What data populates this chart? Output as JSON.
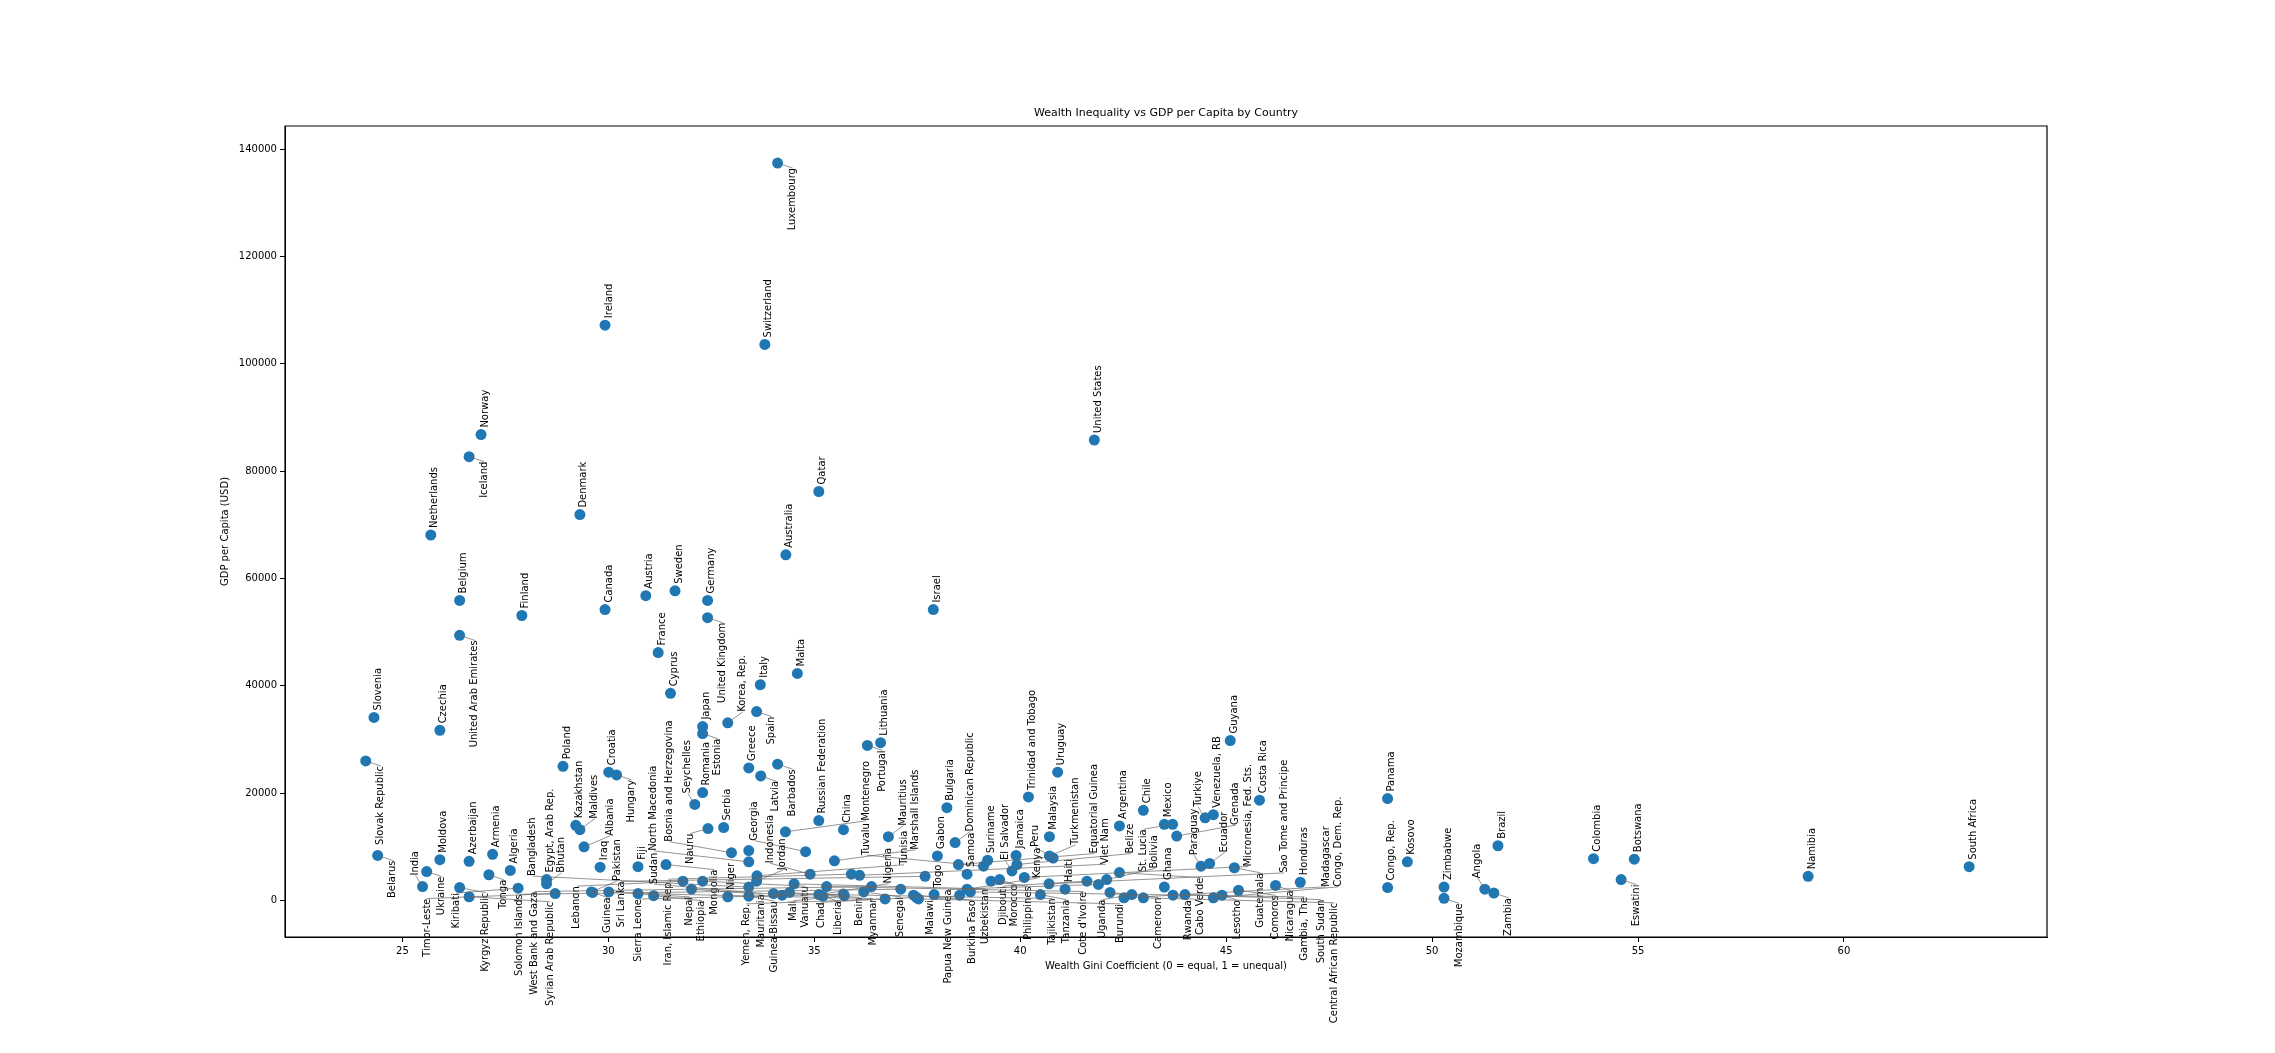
{
  "chart_data": {
    "type": "scatter",
    "title": "Wealth Inequality vs GDP per Capita by Country",
    "xlabel": "Wealth Gini Coefficient (0 = equal, 1 = unequal)",
    "ylabel": "GDP per Capita (USD)",
    "color": "#1f77b4",
    "marker": "circle",
    "grid": false,
    "legend": false,
    "xlim": [
      22.15,
      64.93
    ],
    "ylim": [
      -6800,
      144300
    ],
    "xticks": [
      25,
      30,
      35,
      40,
      45,
      50,
      55,
      60
    ],
    "yticks": [
      0,
      20000,
      40000,
      60000,
      80000,
      100000,
      120000,
      140000
    ],
    "x": [
      24.11,
      24.31,
      24.4,
      25.49,
      25.59,
      25.91,
      25.69,
      25.91,
      26.39,
      26.39,
      26.39,
      26.62,
      26.62,
      26.62,
      26.91,
      27.1,
      27.19,
      27.62,
      27.81,
      27.9,
      28.5,
      28.5,
      28.71,
      28.9,
      29.21,
      29.31,
      29.41,
      29.31,
      29.92,
      29.92,
      29.59,
      29.62,
      29.8,
      30.01,
      30.01,
      30.2,
      30.72,
      30.72,
      31.1,
      31.4,
      30.91,
      31.62,
      31.21,
      31.51,
      31.81,
      32.02,
      32.29,
      32.1,
      32.29,
      32.42,
      32.29,
      32.29,
      32.41,
      32.41,
      32.9,
      33.6,
      33.41,
      33.7,
      34.11,
      36.29,
      36.61,
      32.8,
      32.99,
      32.9,
      33.41,
      33.41,
      33.61,
      33.6,
      33.41,
      33.41,
      34.01,
      34.22,
      34.4,
      34.51,
      34.3,
      34.79,
      34.9,
      35.11,
      35.11,
      35.21,
      35.3,
      35.49,
      35.71,
      35.71,
      35.73,
      35.9,
      36.1,
      36.2,
      36.39,
      36.72,
      36.8,
      37.1,
      37.41,
      37.48,
      37.53,
      37.69,
      37.91,
      37.99,
      38.22,
      38.42,
      38.5,
      38.53,
      38.71,
      38.71,
      38.79,
      39.11,
      39.21,
      39.29,
      39.5,
      39.8,
      39.9,
      39.92,
      40.1,
      40.2,
      40.49,
      40.7,
      40.71,
      40.71,
      40.8,
      41.09,
      40.91,
      41.62,
      41.9,
      42.1,
      42.18,
      42.41,
      42.41,
      42.52,
      42.71,
      42.99,
      42.99,
      43.5,
      43.7,
      43.8,
      43.5,
      43.71,
      44.0,
      44.49,
      44.69,
      44.39,
      44.6,
      44.69,
      44.9,
      45.2,
      45.3,
      45.1,
      45.81,
      46.2,
      46.8,
      48.92,
      48.92,
      49.4,
      50.29,
      50.29,
      51.28,
      51.5,
      51.6,
      53.92,
      54.59,
      54.91,
      59.13,
      63.04,
      34.11,
      33.8,
      41.8,
      35.11,
      34.31,
      37.89,
      34.59,
      33.69
    ],
    "values": [
      26000,
      34100,
      8400,
      2600,
      5400,
      7600,
      68100,
      31700,
      55900,
      49400,
      2400,
      7300,
      700,
      82700,
      86800,
      4800,
      8600,
      5600,
      2300,
      53100,
      3900,
      3100,
      1300,
      25000,
      14000,
      13200,
      10000,
      71900,
      107200,
      54200,
      1600,
      1500,
      6200,
      1600,
      23900,
      23400,
      1300,
      6300,
      900,
      6700,
      56800,
      57700,
      46200,
      38600,
      3600,
      2100,
      3600,
      17900,
      20100,
      13400,
      31100,
      32400,
      55900,
      52700,
      33100,
      35200,
      24700,
      23200,
      25400,
      28900,
      29400,
      13600,
      8900,
      700,
      9300,
      7200,
      4600,
      3600,
      2500,
      800,
      1300,
      1000,
      1500,
      3100,
      12800,
      9100,
      4900,
      14900,
      1100,
      800,
      2600,
      7400,
      13200,
      1200,
      900,
      4900,
      4700,
      1600,
      2600,
      300,
      11900,
      2100,
      1000,
      600,
      300,
      4500,
      1100,
      8300,
      17300,
      10800,
      6700,
      1000,
      4900,
      2100,
      1600,
      6400,
      7500,
      3600,
      3900,
      5500,
      8400,
      6700,
      4300,
      19300,
      1100,
      3100,
      11900,
      8300,
      7900,
      2100,
      23900,
      3600,
      3000,
      3900,
      1500,
      5200,
      13900,
      500,
      1100,
      500,
      16800,
      14200,
      14200,
      12000,
      2500,
      1000,
      1100,
      15400,
      16000,
      6400,
      6900,
      500,
      1000,
      6100,
      1900,
      29800,
      18700,
      2800,
      3400,
      19000,
      2400,
      7200,
      2500,
      400,
      2100,
      1400,
      10200,
      7800,
      3900,
      7700,
      4500,
      6300,
      137400,
      103600,
      85800,
      76200,
      64400,
      54200,
      42300,
      40200
    ],
    "annotations": [
      {
        "text": "Slovak Republic",
        "x": 24.11,
        "y": 26000
      },
      {
        "text": "Slovenia",
        "x": 24.31,
        "y": 34100
      },
      {
        "text": "Belarus",
        "x": 24.4,
        "y": 8400
      },
      {
        "text": "India",
        "x": 25.49,
        "y": 2600
      },
      {
        "text": "Ukraine",
        "x": 25.59,
        "y": 5400
      },
      {
        "text": "Moldova",
        "x": 25.91,
        "y": 7600
      },
      {
        "text": "Netherlands",
        "x": 25.69,
        "y": 68100
      },
      {
        "text": "Czechia",
        "x": 25.91,
        "y": 31700
      },
      {
        "text": "Belgium",
        "x": 26.39,
        "y": 55900
      },
      {
        "text": "United Arab Emirates",
        "x": 26.39,
        "y": 49400
      },
      {
        "text": "Kyrgyz Republic",
        "x": 26.39,
        "y": 2400
      },
      {
        "text": "Azerbaijan",
        "x": 26.62,
        "y": 7300
      },
      {
        "text": "Syrian Arab Republic",
        "x": 26.62,
        "y": 700
      },
      {
        "text": "Iceland",
        "x": 26.62,
        "y": 82700
      },
      {
        "text": "Norway",
        "x": 26.91,
        "y": 86800
      },
      {
        "text": "Tonga",
        "x": 27.1,
        "y": 4800
      },
      {
        "text": "Armenia",
        "x": 27.19,
        "y": 8600
      },
      {
        "text": "Algeria",
        "x": 27.62,
        "y": 5600
      },
      {
        "text": "Kiribati",
        "x": 27.81,
        "y": 2300
      },
      {
        "text": "Finland",
        "x": 27.9,
        "y": 53100
      },
      {
        "text": "Egypt, Arab Rep.",
        "x": 28.5,
        "y": 3900
      },
      {
        "text": "Bhutan",
        "x": 28.5,
        "y": 3100
      },
      {
        "text": "Timor-Leste",
        "x": 28.71,
        "y": 1300
      },
      {
        "text": "Poland",
        "x": 28.9,
        "y": 25000
      },
      {
        "text": "Kazakhstan",
        "x": 29.21,
        "y": 14000
      },
      {
        "text": "Maldives",
        "x": 29.31,
        "y": 13200
      },
      {
        "text": "Albania",
        "x": 29.41,
        "y": 10000
      },
      {
        "text": "Denmark",
        "x": 29.31,
        "y": 71900
      },
      {
        "text": "Ireland",
        "x": 29.92,
        "y": 107200
      },
      {
        "text": "Canada",
        "x": 29.92,
        "y": 54200
      },
      {
        "text": "Pakistan",
        "x": 29.59,
        "y": 1600
      },
      {
        "text": "Guinea",
        "x": 29.62,
        "y": 1500
      },
      {
        "text": "Iraq",
        "x": 29.8,
        "y": 6200
      },
      {
        "text": "Nepal",
        "x": 30.01,
        "y": 1600
      },
      {
        "text": "Croatia",
        "x": 30.01,
        "y": 23900
      },
      {
        "text": "Hungary",
        "x": 30.2,
        "y": 23400
      },
      {
        "text": "Myanmar",
        "x": 30.72,
        "y": 1300
      },
      {
        "text": "Fiji",
        "x": 30.72,
        "y": 6300
      },
      {
        "text": "Ethiopia",
        "x": 31.1,
        "y": 900
      },
      {
        "text": "Mongolia",
        "x": 31.4,
        "y": 6700
      },
      {
        "text": "Austria",
        "x": 30.91,
        "y": 56800
      },
      {
        "text": "Sweden",
        "x": 31.62,
        "y": 57700
      },
      {
        "text": "France",
        "x": 31.21,
        "y": 46200
      },
      {
        "text": "Cyprus",
        "x": 31.51,
        "y": 38600
      },
      {
        "text": "Lebanon",
        "x": 31.81,
        "y": 3600
      },
      {
        "text": "Mauritania",
        "x": 32.02,
        "y": 2100
      },
      {
        "text": "Vanuatu",
        "x": 32.29,
        "y": 3600
      },
      {
        "text": "Seychelles",
        "x": 32.1,
        "y": 17900
      },
      {
        "text": "Romania",
        "x": 32.29,
        "y": 20100
      },
      {
        "text": "Nauru",
        "x": 32.42,
        "y": 13400
      },
      {
        "text": "Estonia",
        "x": 32.29,
        "y": 31100
      },
      {
        "text": "Japan",
        "x": 32.29,
        "y": 32400
      },
      {
        "text": "Germany",
        "x": 32.41,
        "y": 55900
      },
      {
        "text": "United Kingdom",
        "x": 32.41,
        "y": 52700
      },
      {
        "text": "Korea, Rep.",
        "x": 32.9,
        "y": 33100
      },
      {
        "text": "Spain",
        "x": 33.6,
        "y": 35200
      },
      {
        "text": "Greece",
        "x": 33.41,
        "y": 24700
      },
      {
        "text": "Latvia",
        "x": 33.7,
        "y": 23200
      },
      {
        "text": "Barbados",
        "x": 34.11,
        "y": 25400
      },
      {
        "text": "Portugal",
        "x": 36.29,
        "y": 28900
      },
      {
        "text": "Lithuania",
        "x": 36.61,
        "y": 29400
      },
      {
        "text": "Serbia",
        "x": 32.8,
        "y": 13600
      },
      {
        "text": "Bosnia and Herzegovina",
        "x": 32.99,
        "y": 8900
      },
      {
        "text": "Niger",
        "x": 32.9,
        "y": 700
      },
      {
        "text": "North Macedonia",
        "x": 33.41,
        "y": 7200
      },
      {
        "text": "Tunisia",
        "x": 33.61,
        "y": 4600
      },
      {
        "text": "Jordan",
        "x": 33.6,
        "y": 3600
      },
      {
        "text": "Bangladesh",
        "x": 33.41,
        "y": 2500
      },
      {
        "text": "Guinea-Bissau",
        "x": 33.41,
        "y": 800
      },
      {
        "text": "Tajikistan",
        "x": 34.01,
        "y": 1300
      },
      {
        "text": "Sudan",
        "x": 34.22,
        "y": 1000
      },
      {
        "text": "Benin",
        "x": 34.4,
        "y": 1500
      },
      {
        "text": "Uzbekistan",
        "x": 34.51,
        "y": 3100
      },
      {
        "text": "Montenegro",
        "x": 34.3,
        "y": 12800
      },
      {
        "text": "Georgia",
        "x": 34.79,
        "y": 9100
      },
      {
        "text": "Indonesia",
        "x": 34.9,
        "y": 4900
      },
      {
        "text": "Russian Federation",
        "x": 35.11,
        "y": 14900
      },
      {
        "text": "Nigeria",
        "x": 35.11,
        "y": 1100
      },
      {
        "text": "Liberia",
        "x": 35.21,
        "y": 800
      },
      {
        "text": "Cote d'Ivoire",
        "x": 35.3,
        "y": 2600
      },
      {
        "text": "Marshall Islands",
        "x": 35.49,
        "y": 7400
      },
      {
        "text": "China",
        "x": 35.71,
        "y": 13200
      },
      {
        "text": "Sierra Leone",
        "x": 35.71,
        "y": 1200
      },
      {
        "text": "Mali",
        "x": 35.73,
        "y": 900
      },
      {
        "text": "Iran, Islamic Rep.",
        "x": 35.9,
        "y": 4900
      },
      {
        "text": "Viet Nam",
        "x": 36.1,
        "y": 4700
      },
      {
        "text": "Senegal",
        "x": 36.2,
        "y": 1600
      },
      {
        "text": "West Bank and Gaza",
        "x": 36.39,
        "y": 2600
      },
      {
        "text": "Yemen, Rep.",
        "x": 36.72,
        "y": 300
      },
      {
        "text": "Mauritius",
        "x": 36.8,
        "y": 11900
      },
      {
        "text": "Solomon Islands",
        "x": 37.1,
        "y": 2100
      },
      {
        "text": "Burkina Faso",
        "x": 37.41,
        "y": 1000
      },
      {
        "text": "Chad",
        "x": 37.48,
        "y": 600
      },
      {
        "text": "Burundi",
        "x": 37.53,
        "y": 300
      },
      {
        "text": "Sri Lanka",
        "x": 37.69,
        "y": 4500
      },
      {
        "text": "Togo",
        "x": 37.91,
        "y": 1100
      },
      {
        "text": "Gabon",
        "x": 37.99,
        "y": 8300
      },
      {
        "text": "Bulgaria",
        "x": 38.22,
        "y": 17300
      },
      {
        "text": "Dominican Republic",
        "x": 38.42,
        "y": 10800
      },
      {
        "text": "Equatorial Guinea",
        "x": 38.5,
        "y": 6700
      },
      {
        "text": "Malawi",
        "x": 38.53,
        "y": 1000
      },
      {
        "text": "Samoa",
        "x": 38.71,
        "y": 4900
      },
      {
        "text": "Kenya",
        "x": 38.71,
        "y": 2100
      },
      {
        "text": "Gambia, The",
        "x": 38.79,
        "y": 1600
      },
      {
        "text": "Tuvalu",
        "x": 39.11,
        "y": 6400
      },
      {
        "text": "Suriname",
        "x": 39.21,
        "y": 7500
      },
      {
        "text": "Philippines",
        "x": 39.29,
        "y": 3600
      },
      {
        "text": "Morocco",
        "x": 39.5,
        "y": 3900
      },
      {
        "text": "El Salvador",
        "x": 39.8,
        "y": 5500
      },
      {
        "text": "Jamaica",
        "x": 39.9,
        "y": 8400
      },
      {
        "text": "Belize",
        "x": 39.92,
        "y": 6700
      },
      {
        "text": "Micronesia, Fed. Sts.",
        "x": 40.1,
        "y": 4300
      },
      {
        "text": "Trinidad and Tobago",
        "x": 40.2,
        "y": 19300
      },
      {
        "text": "Tanzania",
        "x": 40.49,
        "y": 1100
      },
      {
        "text": "Sao Tome and Principe",
        "x": 40.7,
        "y": 3100
      },
      {
        "text": "Malaysia",
        "x": 40.71,
        "y": 11900
      },
      {
        "text": "Turkmenistan",
        "x": 40.71,
        "y": 8300
      },
      {
        "text": "Peru",
        "x": 40.8,
        "y": 7900
      },
      {
        "text": "Haiti",
        "x": 41.09,
        "y": 2100
      },
      {
        "text": "Uruguay",
        "x": 40.91,
        "y": 23900
      },
      {
        "text": "Djibouti",
        "x": 41.62,
        "y": 3600
      },
      {
        "text": "Papua New Guinea",
        "x": 41.9,
        "y": 3000
      },
      {
        "text": "Bolivia",
        "x": 42.1,
        "y": 3900
      },
      {
        "text": "Cameroon",
        "x": 42.18,
        "y": 1500
      },
      {
        "text": "Cabo Verde",
        "x": 42.41,
        "y": 5200
      },
      {
        "text": "Argentina",
        "x": 42.41,
        "y": 13900
      },
      {
        "text": "Madagascar",
        "x": 42.52,
        "y": 500
      },
      {
        "text": "Uganda",
        "x": 42.71,
        "y": 1100
      },
      {
        "text": "Central African Republic",
        "x": 42.99,
        "y": 500
      },
      {
        "text": "Chile",
        "x": 42.99,
        "y": 16800
      },
      {
        "text": "Mexico",
        "x": 43.5,
        "y": 14200
      },
      {
        "text": "St. Lucia",
        "x": 43.7,
        "y": 14200
      },
      {
        "text": "Grenada",
        "x": 43.8,
        "y": 12000
      },
      {
        "text": "Ghana",
        "x": 43.5,
        "y": 2500
      },
      {
        "text": "Rwanda",
        "x": 43.71,
        "y": 1000
      },
      {
        "text": "South Sudan",
        "x": 44.0,
        "y": 1100
      },
      {
        "text": "Turkiye",
        "x": 44.49,
        "y": 15400
      },
      {
        "text": "Venezuela, RB",
        "x": 44.69,
        "y": 16000
      },
      {
        "text": "Paraguay",
        "x": 44.39,
        "y": 6400
      },
      {
        "text": "Ecuador",
        "x": 44.6,
        "y": 6900
      },
      {
        "text": "Congo, Dem. Rep.",
        "x": 44.69,
        "y": 500
      },
      {
        "text": "Lesotho",
        "x": 44.9,
        "y": 1000
      },
      {
        "text": "Guatemala",
        "x": 45.2,
        "y": 6100
      },
      {
        "text": "Comoros",
        "x": 45.3,
        "y": 1900
      },
      {
        "text": "Guyana",
        "x": 45.1,
        "y": 29800
      },
      {
        "text": "Costa Rica",
        "x": 45.81,
        "y": 18700
      },
      {
        "text": "Nicaragua",
        "x": 46.2,
        "y": 2800
      },
      {
        "text": "Honduras",
        "x": 46.8,
        "y": 3400
      },
      {
        "text": "Panama",
        "x": 48.92,
        "y": 19000
      },
      {
        "text": "Congo, Rep.",
        "x": 48.92,
        "y": 2400
      },
      {
        "text": "Kosovo",
        "x": 49.4,
        "y": 7200
      },
      {
        "text": "Zimbabwe",
        "x": 50.29,
        "y": 2500
      },
      {
        "text": "Mozambique",
        "x": 50.29,
        "y": 400
      },
      {
        "text": "Angola",
        "x": 51.28,
        "y": 2100
      },
      {
        "text": "Zambia",
        "x": 51.5,
        "y": 1400
      },
      {
        "text": "Brazil",
        "x": 51.6,
        "y": 10200
      },
      {
        "text": "Colombia",
        "x": 53.92,
        "y": 7800
      },
      {
        "text": "Eswatini",
        "x": 54.59,
        "y": 3900
      },
      {
        "text": "Botswana",
        "x": 54.91,
        "y": 7700
      },
      {
        "text": "Namibia",
        "x": 59.13,
        "y": 4500
      },
      {
        "text": "South Africa",
        "x": 63.04,
        "y": 6300
      },
      {
        "text": "Luxembourg",
        "x": 34.11,
        "y": 137400
      },
      {
        "text": "Switzerland",
        "x": 33.8,
        "y": 103600
      },
      {
        "text": "United States",
        "x": 41.8,
        "y": 85800
      },
      {
        "text": "Qatar",
        "x": 35.11,
        "y": 76200
      },
      {
        "text": "Australia",
        "x": 34.31,
        "y": 64400
      },
      {
        "text": "Israel",
        "x": 37.89,
        "y": 54200
      },
      {
        "text": "Malta",
        "x": 34.59,
        "y": 42300
      },
      {
        "text": "Italy",
        "x": 33.69,
        "y": 40200
      }
    ]
  }
}
